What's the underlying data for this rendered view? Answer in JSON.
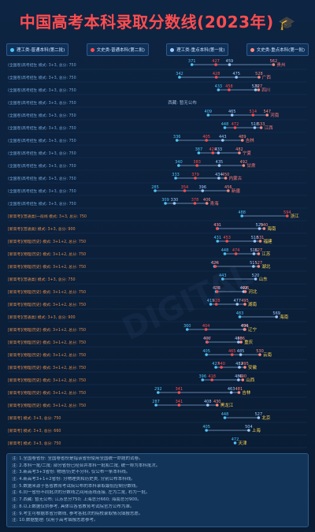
{
  "header": {
    "title": "中国高考本科录取分数线(2023年)",
    "cap_icon": "graduation-cap-icon"
  },
  "legend": [
    {
      "label": "理工类-普通本科(第二批)",
      "color": "#4fc3f7"
    },
    {
      "label": "文史类-普通本科(第二批)",
      "color": "#ff4d4f"
    },
    {
      "label": "理工类-重点本科(第一批)",
      "color": "#9ecbff"
    },
    {
      "label": "文史类-重点本科(第一批)",
      "color": "#ff8a80"
    }
  ],
  "colors": {
    "li2": "#4fc3f7",
    "wen2": "#ff4d4f",
    "li1": "#9ecbff",
    "wen1": "#ff8a80",
    "line": "#7fa6d1"
  },
  "chart_data": {
    "type": "scatter",
    "title": "中国高考本科录取分数线(2023年)",
    "series_names": [
      "理工类-普通本科(第二批)",
      "文史类-普通本科(第二批)",
      "理工类-重点本科(第一批)",
      "文史类-重点本科(第一批)"
    ],
    "xlim": [
      250,
      600
    ],
    "rows": [
      {
        "province": "贵州",
        "note": "(全国卷)高考招生 模式: 3+3, 总分: 750",
        "li2": 371,
        "wen2": null,
        "li1": 459,
        "wen1": 562,
        "extra": [
          427
        ]
      },
      {
        "province": "广西",
        "note": "(全国卷)高考招生 模式: 3+3, 总分: 750",
        "li2": 342,
        "wen2": 428,
        "li1": 475,
        "wen1": 528
      },
      {
        "province": "四川",
        "note": "(全国卷)高考招生 模式: 3+3, 总分: 750",
        "li2": 433,
        "wen2": 458,
        "li1": 520,
        "wen1": 527
      },
      {
        "province": "西藏",
        "note": "(全国卷)高考招生 模式: 3+3, 总分: 750",
        "label": "西藏: 暂无公布"
      },
      {
        "province": "河南",
        "note": "(全国卷)高考招生 模式: 3+3, 总分: 750",
        "li2": 409,
        "wen2": null,
        "li1": 465,
        "wen1": 547,
        "extra": [
          514
        ]
      },
      {
        "province": "江西",
        "note": "(全国卷)高考招生 模式: 3+3, 总分: 750",
        "li2": 448,
        "wen2": 472,
        "li1": 518,
        "wen1": 533
      },
      {
        "province": "吉林",
        "note": "(全国卷)高考招生 模式: 3+3, 总分: 750",
        "li2": 336,
        "wen2": 405,
        "li1": 443,
        "wen1": 489
      },
      {
        "province": "宁夏",
        "note": "(全国卷)高考招生 模式: 3+3, 总分: 750",
        "li2": 387,
        "wen2": 420,
        "li1": 433,
        "wen1": 482
      },
      {
        "province": "甘肃",
        "note": "(全国卷)高考招生 模式: 3+3, 总分: 750",
        "li2": 340,
        "wen2": 383,
        "li1": 435,
        "wen1": 492
      },
      {
        "province": "内蒙古",
        "note": "(全国卷)高考招生 模式: 3+3, 总分: 750",
        "li2": 333,
        "wen2": 379,
        "li1": 434,
        "wen1": 450
      },
      {
        "province": "新疆",
        "note": "(全国卷)高考招生 模式: 3+3, 总分: 750",
        "li2": 285,
        "wen2": 354,
        "li1": 396,
        "wen1": 456
      },
      {
        "province": "青海",
        "note": "(全国卷)高考招生 模式: 3+3, 总分: 750",
        "li2": 309,
        "wen2": 378,
        "li1": 330,
        "wen1": 406
      },
      {
        "province": "浙江",
        "note": "[新高考](普通类)一段线 模式: 3+3, 总分: 750",
        "li2": 488,
        "wen2": null,
        "li1": null,
        "wen1": null,
        "extra": [
          594
        ]
      },
      {
        "province": "海南",
        "note": "[新高考](普通类) 模式: 3+3, 总分: 900",
        "li2": 431,
        "wen2": 430,
        "li1": 529,
        "wen1": 540
      },
      {
        "province": "福建",
        "note": "[新高考](物理/历史) 模式: 3+1+2, 总分: 750",
        "li2": 431,
        "wen2": 453,
        "li1": 518,
        "wen1": 531
      },
      {
        "province": "江苏",
        "note": "[新高考](物理/历史) 模式: 3+1+2, 总分: 750",
        "li2": 448,
        "wen2": 474,
        "li1": 516,
        "wen1": 527
      },
      {
        "province": "湖北",
        "note": "[新高考](物理/历史) 模式: 3+1+2, 总分: 750",
        "li2": 424,
        "wen2": 426,
        "li1": 515,
        "wen1": 527
      },
      {
        "province": "山东",
        "note": "[新高考](普通类) 模式: 3+3, 总分: 750",
        "li2": 443,
        "wen2": null,
        "li1": 520,
        "wen1": null
      },
      {
        "province": "河北",
        "note": "[新高考](物理/历史) 模式: 3+1+2, 总分: 750",
        "li2": 428,
        "wen2": 430,
        "li1": 492,
        "wen1": 496
      },
      {
        "province": "湖南",
        "note": "[新高考](物理/历史) 模式: 3+1+2, 总分: 750",
        "li2": 415,
        "wen2": 428,
        "li1": 477,
        "wen1": 495
      },
      {
        "province": "海南",
        "note": "[新高考](普通类) 模式: 3+3, 总分: 900",
        "li2": 483,
        "wen2": null,
        "li1": 569,
        "wen1": null
      },
      {
        "province": "辽宁",
        "note": "[新高考](物理/历史) 模式: 3+1+2, 总分: 750",
        "li2": 360,
        "wen2": 404,
        "li1": 494,
        "wen1": 495
      },
      {
        "province": "重庆",
        "note": "[新高考](物理/历史) 模式: 3+1+2, 总分: 750",
        "li2": 406,
        "wen2": 407,
        "li1": 480,
        "wen1": 486
      },
      {
        "province": "云南",
        "note": "[新高考](物理/历史) 模式: 3+1+2, 总分: 750",
        "li2": 405,
        "wen2": 465,
        "li1": 485,
        "wen1": 530
      },
      {
        "province": "安徽",
        "note": "[新高考](物理/历史) 模式: 3+1+2, 总分: 750",
        "li2": 427,
        "wen2": 440,
        "li1": 482,
        "wen1": 495
      },
      {
        "province": "山西",
        "note": "[新高考](物理/历史) 模式: 3+1+2, 总分: 750",
        "li2": 396,
        "wen2": 418,
        "li1": 480,
        "wen1": 490
      },
      {
        "province": "吉林",
        "note": "[新高考](物理/历史) 模式: 3+1+2, 总分: 750",
        "li2": 292,
        "wen2": 341,
        "li1": 463,
        "wen1": 481
      },
      {
        "province": "黑龙江",
        "note": "[新高考](物理/历史) 模式: 3+1+2, 总分: 750",
        "li2": 287,
        "wen2": 341,
        "li1": 408,
        "wen1": 430
      },
      {
        "province": "北京",
        "note": "[新高考] 模式: 3+3, 总分: 750",
        "li2": 448,
        "wen2": null,
        "li1": 527,
        "wen1": null
      },
      {
        "province": "上海",
        "note": "[新高考] 模式: 3+3, 总分: 660",
        "li2": 405,
        "wen2": null,
        "li1": 504,
        "wen1": null
      },
      {
        "province": "天津",
        "note": "[新高考] 模式: 3+3, 总分: 750",
        "li2": 472,
        "wen2": null,
        "li1": null,
        "wen1": null
      }
    ]
  },
  "notes": [
    "注: 1.全国卷省份: 全国卷省份是指该省份使用全国统一命题的试卷。",
    "注: 2.本科一批/二批: 部分省份已经合并本科一批和二批, 统一称为本科批次。",
    "注: 3.新高考3+3省份: 物理/历史不分科, 仅公布一条本科线。",
    "注: 4.新高考3+1+2省份: 分物理类和历史类, 分别公布本科线。",
    "注: 5.数据来源于各省教育考试院公布的本科录取最低控制分数线。",
    "注: 6.同一省份不同批次的分数线之间用连线连接, 左为二批, 右为一批。",
    "注: 7.西藏: 暂无公布; 江苏总分750; 上海总分660; 海南总分900。",
    "注: 8.以上数据仅供参考, 具体以各省教育考试院官方公布为准。",
    "注: 9.考生可根据本省分数线, 参考各批次的院校录取情况填报志愿。",
    "注: 10.数据整理: 仅用于高考填报志愿参考。"
  ],
  "watermark": "DIGITAL"
}
